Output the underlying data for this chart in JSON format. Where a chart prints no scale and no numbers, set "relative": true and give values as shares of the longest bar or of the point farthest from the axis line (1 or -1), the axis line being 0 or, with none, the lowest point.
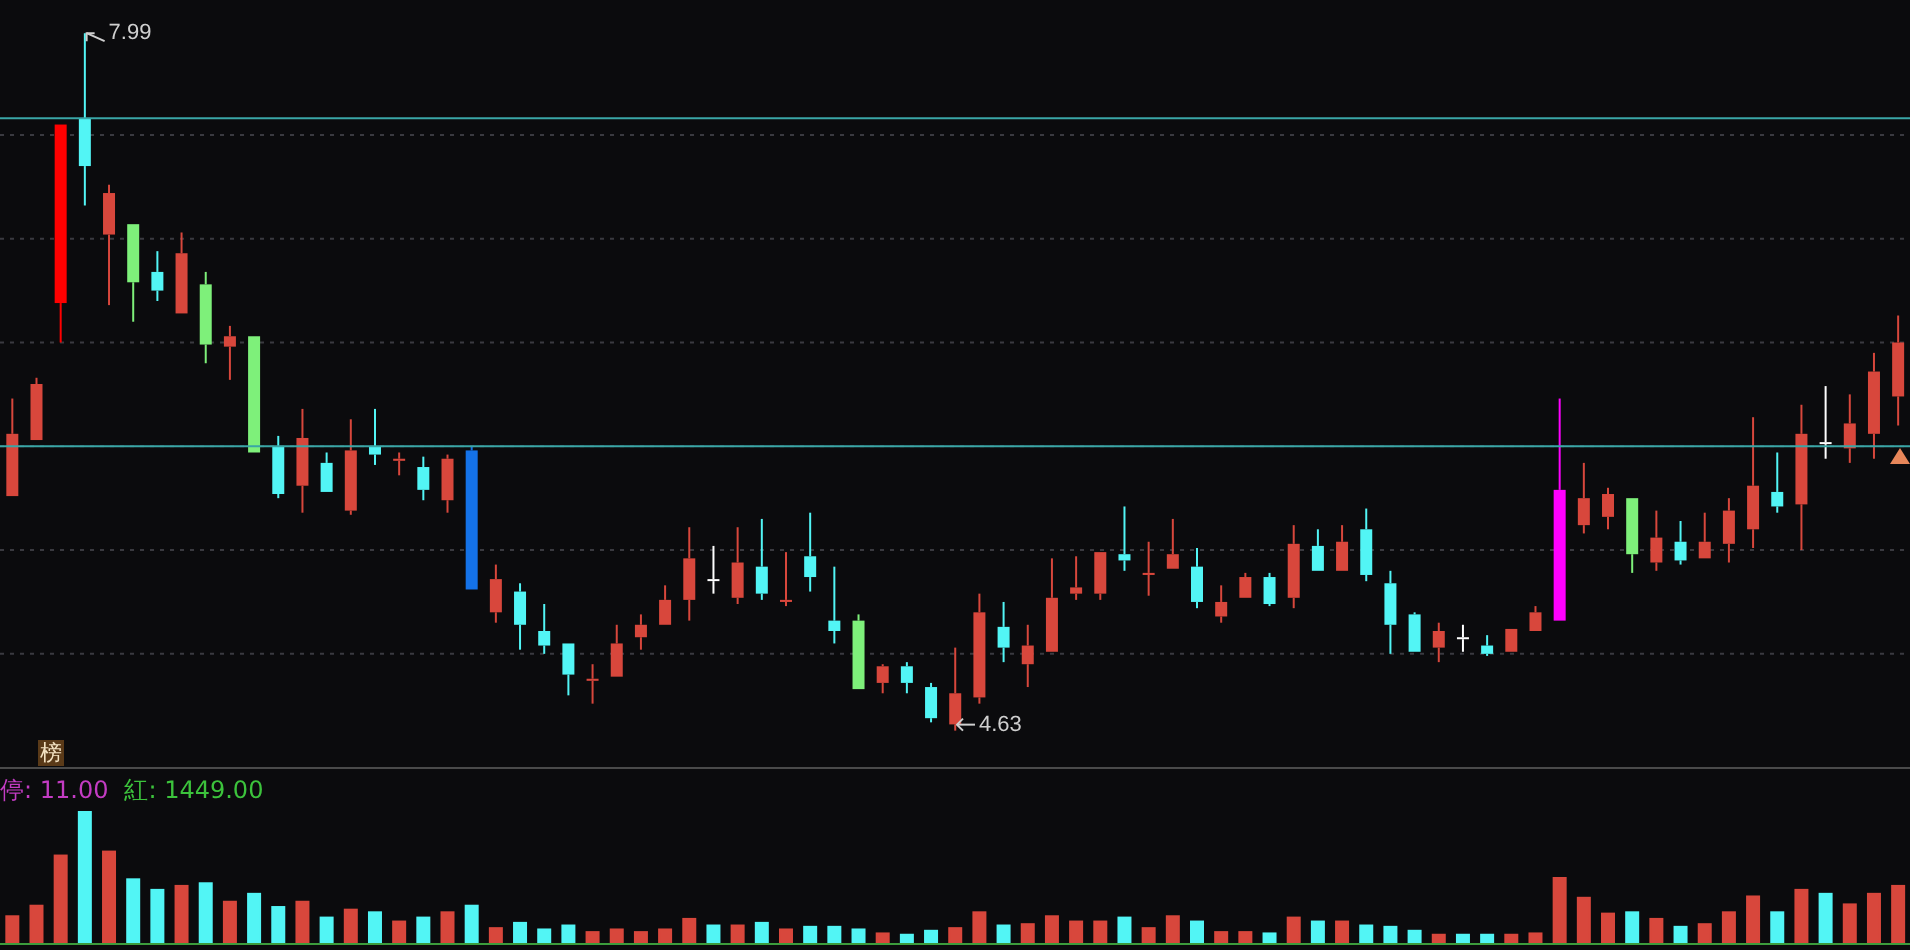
{
  "chart_data": [
    {
      "type": "candlestick",
      "categories": [
        null,
        null,
        null,
        null,
        null,
        null,
        null,
        null,
        null,
        null,
        null,
        null,
        null,
        null,
        null,
        null,
        null,
        null,
        null,
        null,
        null,
        null,
        null,
        null,
        null,
        null,
        null,
        null,
        null,
        null,
        null,
        null,
        null,
        null,
        null,
        null,
        null,
        null,
        null,
        null,
        null,
        null,
        null,
        null,
        null,
        null,
        null,
        null,
        null,
        null,
        null,
        null,
        null,
        null,
        null,
        null,
        null,
        null,
        null,
        null,
        null,
        null,
        null,
        null,
        null,
        null,
        null,
        null,
        null,
        null,
        null,
        null,
        null,
        null,
        null,
        null,
        null,
        null,
        null
      ],
      "ohlc": [
        [
          5.76,
          6.23,
          5.76,
          6.06
        ],
        [
          6.03,
          6.33,
          6.03,
          6.3
        ],
        [
          6.69,
          7.55,
          6.5,
          7.55
        ],
        [
          7.58,
          7.99,
          7.16,
          7.35
        ],
        [
          7.02,
          7.26,
          6.68,
          7.22
        ],
        [
          7.07,
          7.07,
          6.6,
          6.79
        ],
        [
          6.84,
          6.94,
          6.7,
          6.75
        ],
        [
          6.64,
          7.03,
          6.64,
          6.93
        ],
        [
          6.78,
          6.84,
          6.4,
          6.49
        ],
        [
          6.48,
          6.58,
          6.32,
          6.53
        ],
        [
          6.53,
          6.53,
          5.97,
          5.97
        ],
        [
          6.0,
          6.05,
          5.75,
          5.77
        ],
        [
          5.81,
          6.18,
          5.68,
          6.04
        ],
        [
          5.92,
          5.97,
          5.78,
          5.78
        ],
        [
          5.69,
          6.13,
          5.67,
          5.98
        ],
        [
          6.0,
          6.18,
          5.91,
          5.96
        ],
        [
          5.93,
          5.97,
          5.86,
          5.94
        ],
        [
          5.9,
          5.95,
          5.74,
          5.79
        ],
        [
          5.74,
          5.96,
          5.68,
          5.94
        ],
        [
          5.98,
          6.0,
          5.31,
          5.31
        ],
        [
          5.2,
          5.43,
          5.15,
          5.36
        ],
        [
          5.3,
          5.34,
          5.02,
          5.14
        ],
        [
          5.11,
          5.24,
          5.0,
          5.04
        ],
        [
          5.05,
          5.05,
          4.8,
          4.9
        ],
        [
          4.87,
          4.95,
          4.76,
          4.88
        ],
        [
          4.89,
          5.14,
          4.89,
          5.05
        ],
        [
          5.08,
          5.19,
          5.02,
          5.14
        ],
        [
          5.14,
          5.33,
          5.14,
          5.26
        ],
        [
          5.26,
          5.61,
          5.16,
          5.46
        ],
        [
          5.36,
          5.52,
          5.29,
          5.36
        ],
        [
          5.27,
          5.61,
          5.24,
          5.44
        ],
        [
          5.42,
          5.65,
          5.26,
          5.29
        ],
        [
          5.25,
          5.49,
          5.23,
          5.26
        ],
        [
          5.47,
          5.68,
          5.3,
          5.37
        ],
        [
          5.16,
          5.42,
          5.05,
          5.11
        ],
        [
          5.16,
          5.19,
          4.83,
          4.83
        ],
        [
          4.86,
          4.95,
          4.81,
          4.94
        ],
        [
          4.94,
          4.96,
          4.81,
          4.86
        ],
        [
          4.84,
          4.86,
          4.67,
          4.69
        ],
        [
          4.66,
          5.03,
          4.63,
          4.81
        ],
        [
          4.79,
          5.29,
          4.76,
          5.2
        ],
        [
          5.13,
          5.25,
          4.96,
          5.03
        ],
        [
          4.95,
          5.14,
          4.84,
          5.04
        ],
        [
          5.01,
          5.46,
          5.01,
          5.27
        ],
        [
          5.29,
          5.47,
          5.26,
          5.32
        ],
        [
          5.29,
          5.49,
          5.26,
          5.49
        ],
        [
          5.48,
          5.71,
          5.4,
          5.45
        ],
        [
          5.38,
          5.54,
          5.28,
          5.39
        ],
        [
          5.41,
          5.65,
          5.41,
          5.48
        ],
        [
          5.42,
          5.51,
          5.22,
          5.25
        ],
        [
          5.18,
          5.33,
          5.15,
          5.25
        ],
        [
          5.27,
          5.39,
          5.27,
          5.37
        ],
        [
          5.37,
          5.39,
          5.23,
          5.24
        ],
        [
          5.27,
          5.62,
          5.22,
          5.53
        ],
        [
          5.52,
          5.6,
          5.4,
          5.4
        ],
        [
          5.4,
          5.62,
          5.4,
          5.54
        ],
        [
          5.6,
          5.7,
          5.35,
          5.38
        ],
        [
          5.34,
          5.4,
          5.0,
          5.14
        ],
        [
          5.19,
          5.2,
          5.01,
          5.01
        ],
        [
          5.03,
          5.15,
          4.96,
          5.11
        ],
        [
          5.08,
          5.14,
          5.01,
          5.08
        ],
        [
          5.04,
          5.09,
          4.99,
          5.0
        ],
        [
          5.01,
          5.12,
          5.01,
          5.12
        ],
        [
          5.11,
          5.23,
          5.11,
          5.2
        ],
        [
          5.16,
          6.23,
          5.16,
          5.79
        ],
        [
          5.62,
          5.92,
          5.58,
          5.75
        ],
        [
          5.66,
          5.8,
          5.6,
          5.77
        ],
        [
          5.75,
          5.75,
          5.39,
          5.48
        ],
        [
          5.44,
          5.69,
          5.4,
          5.56
        ],
        [
          5.54,
          5.64,
          5.43,
          5.45
        ],
        [
          5.46,
          5.68,
          5.46,
          5.54
        ],
        [
          5.53,
          5.75,
          5.44,
          5.69
        ],
        [
          5.6,
          6.14,
          5.51,
          5.81
        ],
        [
          5.78,
          5.97,
          5.68,
          5.71
        ],
        [
          5.72,
          6.2,
          5.5,
          6.06
        ],
        [
          6.02,
          6.29,
          5.94,
          6.02
        ],
        [
          5.99,
          6.25,
          5.92,
          6.11
        ],
        [
          6.06,
          6.45,
          5.94,
          6.36
        ],
        [
          6.24,
          6.63,
          6.1,
          6.5
        ]
      ],
      "colors": [
        "#d8473c",
        "#d8473c",
        "#ff0000",
        "#52f5f5",
        "#d8473c",
        "#7ef07a",
        "#52f5f5",
        "#d8473c",
        "#7ef07a",
        "#d8473c",
        "#7ef07a",
        "#52f5f5",
        "#d8473c",
        "#52f5f5",
        "#d8473c",
        "#52f5f5",
        "#d8473c",
        "#52f5f5",
        "#d8473c",
        "#1472e8",
        "#d8473c",
        "#52f5f5",
        "#52f5f5",
        "#52f5f5",
        "#d8473c",
        "#d8473c",
        "#d8473c",
        "#d8473c",
        "#d8473c",
        "#ffffff",
        "#d8473c",
        "#52f5f5",
        "#d8473c",
        "#52f5f5",
        "#52f5f5",
        "#7ef07a",
        "#d8473c",
        "#52f5f5",
        "#52f5f5",
        "#d8473c",
        "#d8473c",
        "#52f5f5",
        "#d8473c",
        "#d8473c",
        "#d8473c",
        "#d8473c",
        "#52f5f5",
        "#d8473c",
        "#d8473c",
        "#52f5f5",
        "#d8473c",
        "#d8473c",
        "#52f5f5",
        "#d8473c",
        "#52f5f5",
        "#d8473c",
        "#52f5f5",
        "#52f5f5",
        "#52f5f5",
        "#d8473c",
        "#ffffff",
        "#52f5f5",
        "#d8473c",
        "#d8473c",
        "#ff00ff",
        "#d8473c",
        "#d8473c",
        "#7ef07a",
        "#d8473c",
        "#52f5f5",
        "#d8473c",
        "#d8473c",
        "#d8473c",
        "#52f5f5",
        "#d8473c",
        "#ffffff",
        "#d8473c",
        "#d8473c",
        "#d8473c"
      ],
      "ylim": [
        4.45,
        8.15
      ],
      "yticks": [
        {
          "value": 5,
          "label": null
        },
        {
          "value": 5.5,
          "label": null
        },
        {
          "value": 6,
          "label": null
        },
        {
          "value": 6.5,
          "label": null
        },
        {
          "value": 7,
          "label": null
        },
        {
          "value": 7.5,
          "label": null
        }
      ],
      "grid": "y",
      "ref_lines": [
        {
          "axis": "y",
          "value": 7.58,
          "color": "#3aa6a6"
        },
        {
          "axis": "y",
          "value": 6.0,
          "color": "#3aa6a6"
        }
      ],
      "annotations": [
        "7.99",
        "4.63",
        "榜"
      ]
    },
    {
      "type": "bar",
      "relative": true,
      "categories": [
        null,
        null,
        null,
        null,
        null,
        null,
        null,
        null,
        null,
        null,
        null,
        null,
        null,
        null,
        null,
        null,
        null,
        null,
        null,
        null,
        null,
        null,
        null,
        null,
        null,
        null,
        null,
        null,
        null,
        null,
        null,
        null,
        null,
        null,
        null,
        null,
        null,
        null,
        null,
        null,
        null,
        null,
        null,
        null,
        null,
        null,
        null,
        null,
        null,
        null,
        null,
        null,
        null,
        null,
        null,
        null,
        null,
        null,
        null,
        null,
        null,
        null,
        null,
        null,
        null,
        null,
        null,
        null,
        null,
        null,
        null,
        null,
        null,
        null,
        null,
        null,
        null,
        null,
        null
      ],
      "values": [
        0.21,
        0.29,
        0.67,
        1,
        0.7,
        0.49,
        0.41,
        0.44,
        0.46,
        0.32,
        0.38,
        0.28,
        0.32,
        0.2,
        0.26,
        0.24,
        0.17,
        0.2,
        0.24,
        0.29,
        0.12,
        0.16,
        0.11,
        0.14,
        0.09,
        0.11,
        0.09,
        0.11,
        0.19,
        0.14,
        0.14,
        0.16,
        0.11,
        0.13,
        0.13,
        0.11,
        0.08,
        0.07,
        0.1,
        0.12,
        0.24,
        0.14,
        0.15,
        0.21,
        0.17,
        0.17,
        0.2,
        0.12,
        0.21,
        0.17,
        0.09,
        0.09,
        0.08,
        0.2,
        0.17,
        0.17,
        0.14,
        0.13,
        0.1,
        0.07,
        0.07,
        0.07,
        0.07,
        0.08,
        0.5,
        0.35,
        0.23,
        0.24,
        0.19,
        0.13,
        0.15,
        0.24,
        0.36,
        0.24,
        0.41,
        0.38,
        0.3,
        0.38,
        0.44
      ],
      "colors": [
        "#d8473c",
        "#d8473c",
        "#d8473c",
        "#52f5f5",
        "#d8473c",
        "#52f5f5",
        "#52f5f5",
        "#d8473c",
        "#52f5f5",
        "#d8473c",
        "#52f5f5",
        "#52f5f5",
        "#d8473c",
        "#52f5f5",
        "#d8473c",
        "#52f5f5",
        "#d8473c",
        "#52f5f5",
        "#d8473c",
        "#52f5f5",
        "#d8473c",
        "#52f5f5",
        "#52f5f5",
        "#52f5f5",
        "#d8473c",
        "#d8473c",
        "#d8473c",
        "#d8473c",
        "#d8473c",
        "#52f5f5",
        "#d8473c",
        "#52f5f5",
        "#d8473c",
        "#52f5f5",
        "#52f5f5",
        "#52f5f5",
        "#d8473c",
        "#52f5f5",
        "#52f5f5",
        "#d8473c",
        "#d8473c",
        "#52f5f5",
        "#d8473c",
        "#d8473c",
        "#d8473c",
        "#d8473c",
        "#52f5f5",
        "#d8473c",
        "#d8473c",
        "#52f5f5",
        "#d8473c",
        "#d8473c",
        "#52f5f5",
        "#d8473c",
        "#52f5f5",
        "#d8473c",
        "#52f5f5",
        "#52f5f5",
        "#52f5f5",
        "#d8473c",
        "#52f5f5",
        "#52f5f5",
        "#d8473c",
        "#d8473c",
        "#d8473c",
        "#d8473c",
        "#d8473c",
        "#52f5f5",
        "#d8473c",
        "#52f5f5",
        "#d8473c",
        "#d8473c",
        "#d8473c",
        "#52f5f5",
        "#d8473c",
        "#52f5f5",
        "#d8473c",
        "#d8473c",
        "#d8473c"
      ],
      "annotations": [
        "停: 11.00",
        "紅: 1449.00"
      ]
    }
  ]
}
